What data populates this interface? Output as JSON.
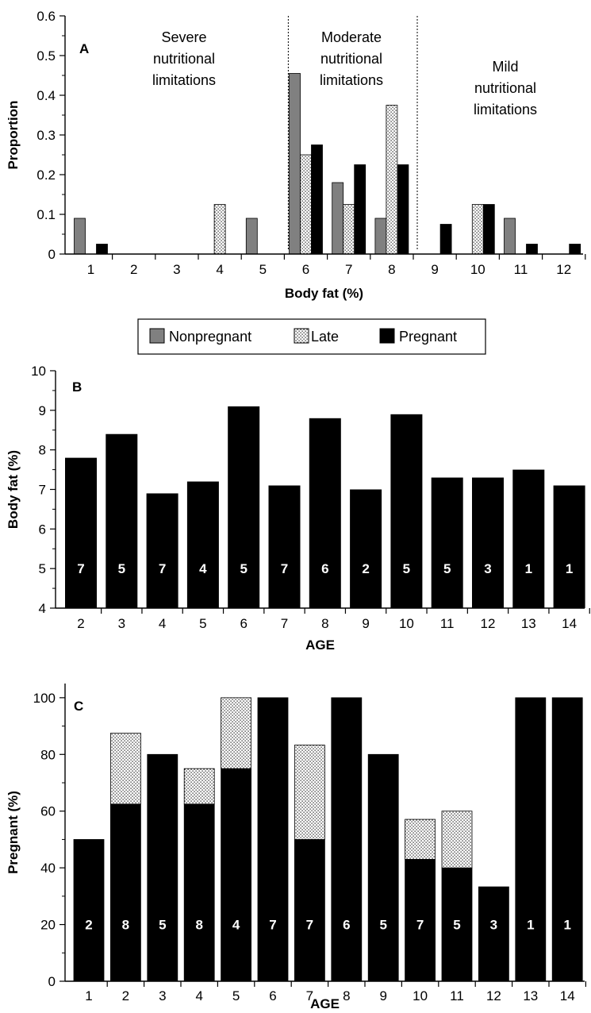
{
  "legend": {
    "items": [
      {
        "label": "Nonpregnant",
        "fill": "#808080"
      },
      {
        "label": "Late",
        "fill": "dots"
      },
      {
        "label": "Pregnant",
        "fill": "#000000"
      }
    ]
  },
  "chart_data": [
    {
      "type": "bar",
      "panel": "A",
      "xlabel": "Body fat (%)",
      "ylabel": "Proportion",
      "ylim": [
        0,
        0.6
      ],
      "yticks": [
        "0",
        "0.1",
        "0.2",
        "0.3",
        "0.4",
        "0.5",
        "0.6"
      ],
      "categories": [
        "1",
        "2",
        "3",
        "4",
        "5",
        "6",
        "7",
        "8",
        "9",
        "10",
        "11",
        "12"
      ],
      "series": [
        {
          "name": "Nonpregnant",
          "color": "#808080",
          "values": [
            0.09,
            0,
            0,
            0,
            0.09,
            0.455,
            0.18,
            0.09,
            0,
            0,
            0.09,
            0
          ]
        },
        {
          "name": "Late",
          "color": "dots",
          "values": [
            0,
            0,
            0,
            0.125,
            0,
            0.25,
            0.125,
            0.375,
            0,
            0.125,
            0,
            0
          ]
        },
        {
          "name": "Pregnant",
          "color": "#000000",
          "values": [
            0.025,
            0,
            0,
            0,
            0,
            0.275,
            0.225,
            0.225,
            0.075,
            0.125,
            0.025,
            0.025
          ]
        }
      ],
      "region_dividers_after_category": [
        "5",
        "8"
      ],
      "regions": [
        {
          "lines": [
            "Severe",
            "nutritional",
            "limitations"
          ]
        },
        {
          "lines": [
            "Moderate",
            "nutritional",
            "limitations"
          ]
        },
        {
          "lines": [
            "Mild",
            "nutritional",
            "limitations"
          ]
        }
      ],
      "grid": false
    },
    {
      "type": "bar",
      "panel": "B",
      "xlabel": "AGE",
      "ylabel": "Body fat (%)",
      "ylim": [
        4,
        10
      ],
      "yticks": [
        "4",
        "5",
        "6",
        "7",
        "8",
        "9",
        "10"
      ],
      "categories": [
        "2",
        "3",
        "4",
        "5",
        "6",
        "7",
        "8",
        "9",
        "10",
        "11",
        "12",
        "13",
        "14"
      ],
      "values": [
        7.8,
        8.4,
        6.9,
        7.2,
        9.1,
        7.1,
        8.8,
        7.0,
        8.9,
        7.3,
        7.3,
        7.5,
        7.1
      ],
      "bar_labels": [
        "7",
        "5",
        "7",
        "4",
        "5",
        "7",
        "6",
        "2",
        "5",
        "5",
        "3",
        "1",
        "1"
      ],
      "bar_label_y": 5,
      "grid": false
    },
    {
      "type": "bar",
      "stacked": true,
      "panel": "C",
      "xlabel": "AGE",
      "ylabel": "Pregnant (%)",
      "ylim": [
        0,
        105
      ],
      "yticks": [
        "0",
        "20",
        "40",
        "60",
        "80",
        "100"
      ],
      "categories": [
        "1",
        "2",
        "3",
        "4",
        "5",
        "6",
        "7",
        "8",
        "9",
        "10",
        "11",
        "12",
        "13",
        "14"
      ],
      "series": [
        {
          "name": "Pregnant",
          "color": "#000000",
          "values": [
            50,
            62.5,
            80,
            62.5,
            75,
            100,
            50,
            100,
            80,
            43,
            40,
            33.3,
            100,
            100
          ]
        },
        {
          "name": "Late",
          "color": "dots",
          "values": [
            0,
            25,
            0,
            12.5,
            25,
            0,
            33.3,
            0,
            0,
            14.1,
            20,
            0,
            0,
            0
          ]
        }
      ],
      "bar_labels": [
        "2",
        "8",
        "5",
        "8",
        "4",
        "7",
        "7",
        "6",
        "5",
        "7",
        "5",
        "3",
        "1",
        "1"
      ],
      "bar_label_y": 20,
      "grid": false
    }
  ]
}
